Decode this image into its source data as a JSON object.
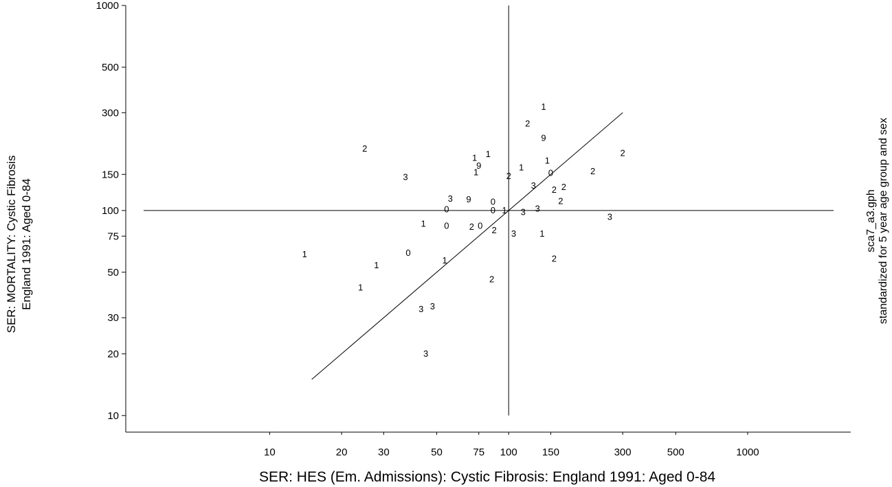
{
  "chart_data": {
    "type": "scatter",
    "xlabel": "SER: HES (Em. Admissions): Cystic Fibrosis: England 1991: Aged 0-84",
    "ylabel_lines": [
      "SER: MORTALITY: Cystic Fibrosis",
      "England 1991: Aged 0-84"
    ],
    "side_note_lines": [
      "sca7_a3.gph",
      "standardized for 5 year age group and sex"
    ],
    "x_scale": "log",
    "y_scale": "log",
    "xlim": [
      2.5,
      2700
    ],
    "ylim": [
      8.3,
      1000
    ],
    "x_ticks": [
      10,
      20,
      30,
      50,
      75,
      100,
      150,
      300,
      500,
      1000
    ],
    "x_tick_labels": [
      "10",
      "20",
      "30",
      "50",
      "75",
      "100",
      "150",
      "300",
      "500",
      "1000"
    ],
    "y_ticks": [
      10,
      20,
      30,
      50,
      75,
      100,
      150,
      300,
      500,
      1000
    ],
    "y_tick_labels": [
      "10",
      "20",
      "30",
      "50",
      "75",
      "100",
      "150",
      "300",
      "500",
      "1000"
    ],
    "reference_lines": {
      "x": 100,
      "y": 100
    },
    "fit_line": {
      "x": [
        15,
        300
      ],
      "y": [
        15,
        300
      ]
    },
    "marker_style": "text labels",
    "points": [
      {
        "x": 25,
        "y": 200,
        "label": "2"
      },
      {
        "x": 140,
        "y": 320,
        "label": "1"
      },
      {
        "x": 120,
        "y": 265,
        "label": "2"
      },
      {
        "x": 140,
        "y": 225,
        "label": "9"
      },
      {
        "x": 300,
        "y": 190,
        "label": "2"
      },
      {
        "x": 82,
        "y": 188,
        "label": "1"
      },
      {
        "x": 72,
        "y": 180,
        "label": "1"
      },
      {
        "x": 145,
        "y": 175,
        "label": "1"
      },
      {
        "x": 75,
        "y": 165,
        "label": "9"
      },
      {
        "x": 113,
        "y": 162,
        "label": "1"
      },
      {
        "x": 73,
        "y": 153,
        "label": "1"
      },
      {
        "x": 100,
        "y": 147,
        "label": "2"
      },
      {
        "x": 150,
        "y": 152,
        "label": "0"
      },
      {
        "x": 225,
        "y": 155,
        "label": "2"
      },
      {
        "x": 37,
        "y": 145,
        "label": "3"
      },
      {
        "x": 127,
        "y": 132,
        "label": "3"
      },
      {
        "x": 155,
        "y": 126,
        "label": "2"
      },
      {
        "x": 170,
        "y": 130,
        "label": "2"
      },
      {
        "x": 57,
        "y": 114,
        "label": "3"
      },
      {
        "x": 68,
        "y": 113,
        "label": "9"
      },
      {
        "x": 86,
        "y": 110,
        "label": "0"
      },
      {
        "x": 165,
        "y": 111,
        "label": "2"
      },
      {
        "x": 55,
        "y": 101,
        "label": "0"
      },
      {
        "x": 86,
        "y": 100,
        "label": "0"
      },
      {
        "x": 96,
        "y": 100,
        "label": "1"
      },
      {
        "x": 115,
        "y": 98,
        "label": "3"
      },
      {
        "x": 132,
        "y": 102,
        "label": "3"
      },
      {
        "x": 265,
        "y": 93,
        "label": "3"
      },
      {
        "x": 44,
        "y": 86,
        "label": "1"
      },
      {
        "x": 55,
        "y": 84,
        "label": "0"
      },
      {
        "x": 70,
        "y": 83,
        "label": "2"
      },
      {
        "x": 76,
        "y": 84,
        "label": "0"
      },
      {
        "x": 87,
        "y": 80,
        "label": "2"
      },
      {
        "x": 105,
        "y": 77,
        "label": "3"
      },
      {
        "x": 138,
        "y": 77,
        "label": "1"
      },
      {
        "x": 14,
        "y": 61,
        "label": "1"
      },
      {
        "x": 38,
        "y": 62,
        "label": "0"
      },
      {
        "x": 54,
        "y": 57,
        "label": "1"
      },
      {
        "x": 155,
        "y": 58,
        "label": "2"
      },
      {
        "x": 28,
        "y": 54,
        "label": "1"
      },
      {
        "x": 85,
        "y": 46,
        "label": "2"
      },
      {
        "x": 24,
        "y": 42,
        "label": "1"
      },
      {
        "x": 43,
        "y": 33,
        "label": "3"
      },
      {
        "x": 48,
        "y": 34,
        "label": "3"
      },
      {
        "x": 45,
        "y": 20,
        "label": "3"
      }
    ]
  }
}
